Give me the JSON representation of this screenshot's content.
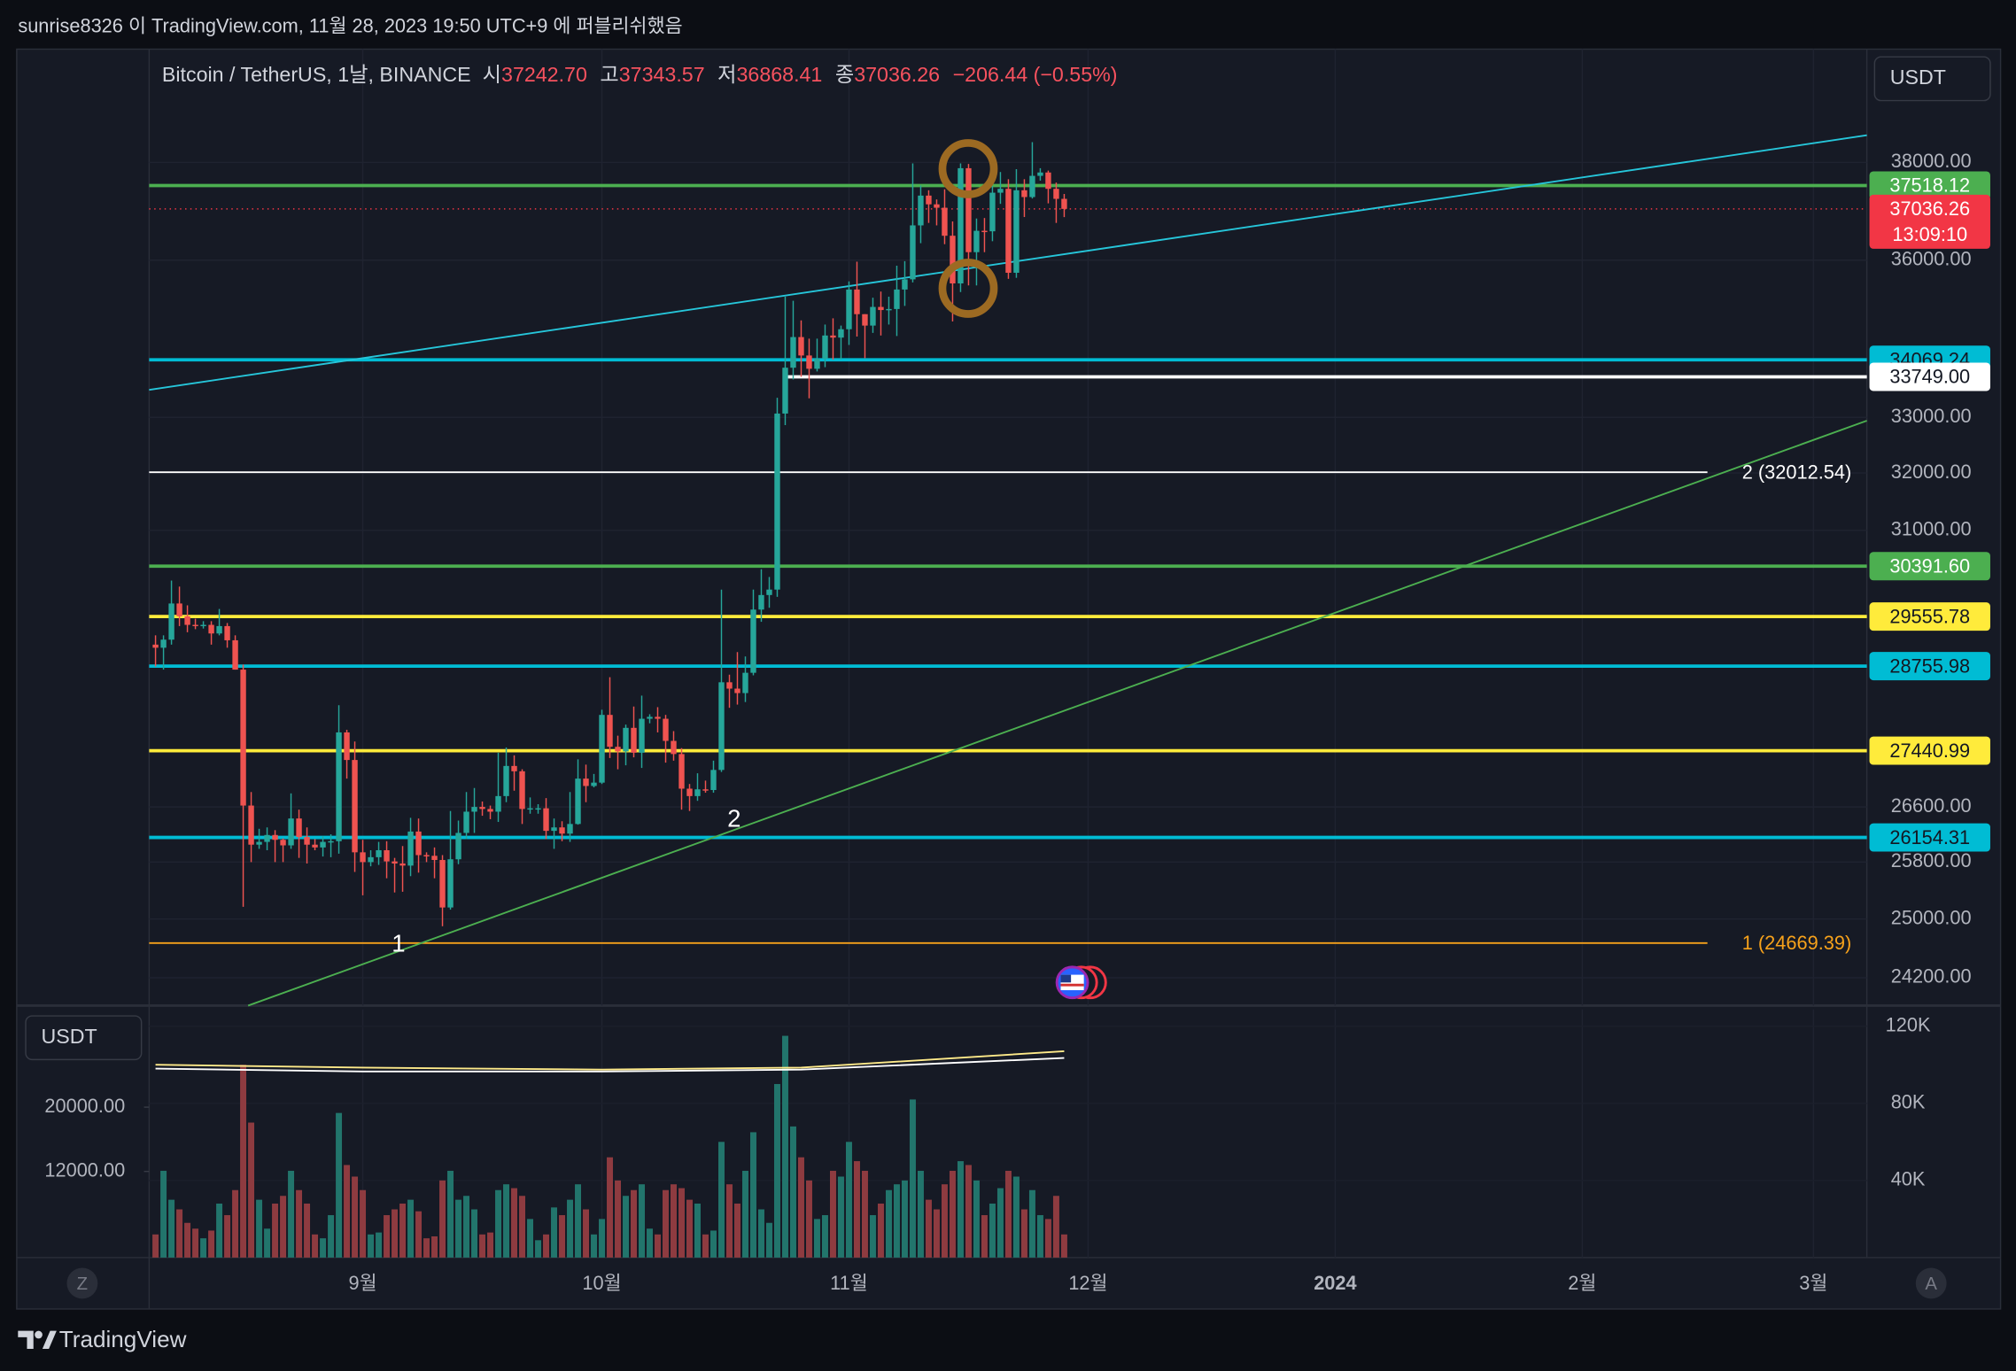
{
  "header": {
    "publisher": "sunrise8326 이 TradingView.com, 11월 28, 2023 19:50 UTC+9 에 퍼블리쉬했음",
    "symbol": "Bitcoin / TetherUS, 1날, BINANCE",
    "ohlc": [
      {
        "key": "시",
        "value": "37242.70"
      },
      {
        "key": "고",
        "value": "37343.57"
      },
      {
        "key": "저",
        "value": "36868.41"
      },
      {
        "key": "종",
        "value": "37036.26"
      }
    ],
    "change": "−206.44 (−0.55%)",
    "currency": "USDT",
    "volume_currency": "USDT",
    "brand": "TradingView",
    "left_button": "Z",
    "right_button": "A"
  },
  "chart_data": [
    {
      "type": "candlestick",
      "log_scale": true,
      "grid": true,
      "up_color": "#26a69a",
      "down_color": "#ef5350",
      "x": [
        -26,
        -25,
        -24,
        -23,
        -22,
        -21,
        -20,
        -19,
        -18,
        -17,
        -16,
        -15,
        -14,
        -13,
        -12,
        -11,
        -10,
        -9,
        -8,
        -7,
        -6,
        -5,
        -4,
        -3,
        -2,
        -1,
        0,
        1,
        2,
        3,
        4,
        5,
        6,
        7,
        8,
        9,
        10,
        11,
        12,
        13,
        14,
        15,
        16,
        17,
        18,
        19,
        20,
        21,
        22,
        23,
        24,
        25,
        26,
        27,
        28,
        29,
        30,
        31,
        32,
        33,
        34,
        35,
        36,
        37,
        38,
        39,
        40,
        41,
        42,
        43,
        44,
        45,
        46,
        47,
        48,
        49,
        50,
        51,
        52,
        53,
        54,
        55,
        56,
        57,
        58,
        59,
        60,
        61,
        62,
        63,
        64,
        65,
        66,
        67,
        68,
        69,
        70,
        71,
        72,
        73,
        74,
        75,
        76,
        77,
        78,
        79,
        80,
        81,
        82,
        83,
        84,
        85,
        86,
        87,
        88
      ],
      "open": [
        29100,
        29050,
        29180,
        29770,
        29560,
        29420,
        29400,
        29420,
        29280,
        29400,
        29170,
        28700,
        26620,
        26050,
        26090,
        26190,
        26120,
        26040,
        26430,
        26160,
        26050,
        26010,
        26090,
        26100,
        27720,
        27300,
        25940,
        25800,
        25870,
        25970,
        25810,
        25780,
        25750,
        26240,
        25900,
        25890,
        25830,
        25160,
        25840,
        26220,
        26530,
        26600,
        26570,
        26530,
        26760,
        27210,
        27130,
        26570,
        26580,
        26580,
        26250,
        26300,
        26210,
        26350,
        27020,
        26910,
        26960,
        27990,
        27500,
        27430,
        27790,
        27410,
        27930,
        27960,
        27930,
        27590,
        27390,
        26870,
        26760,
        26860,
        26850,
        27150,
        28500,
        28400,
        28330,
        28650,
        29670,
        29910,
        30000,
        33070,
        33920,
        34500,
        34150,
        33900,
        34090,
        34530,
        34490,
        34650,
        35420,
        34940,
        34720,
        35080,
        35020,
        35040,
        35420,
        35620,
        36700,
        37310,
        37130,
        37060,
        36490,
        35540,
        37880,
        36160,
        36590,
        36580,
        37370,
        37450,
        35750,
        37420,
        37280,
        37720,
        37790,
        37450,
        37242.7
      ],
      "high": [
        29250,
        29250,
        30150,
        30050,
        29740,
        29520,
        29480,
        29480,
        29680,
        29450,
        29250,
        28780,
        26820,
        26280,
        26300,
        26260,
        26140,
        26800,
        26560,
        26300,
        26130,
        26170,
        26200,
        28140,
        27760,
        27580,
        26120,
        25970,
        26090,
        26100,
        25860,
        26030,
        26440,
        26430,
        25940,
        26010,
        25900,
        26540,
        26400,
        26820,
        26880,
        26680,
        26620,
        27410,
        27490,
        27370,
        27160,
        26740,
        26640,
        26730,
        26430,
        26390,
        26820,
        27310,
        27230,
        27090,
        28070,
        28580,
        27670,
        27840,
        28120,
        28290,
        28000,
        28110,
        27990,
        27740,
        27480,
        26940,
        27100,
        26990,
        27290,
        30000,
        28620,
        28980,
        28910,
        30000,
        30340,
        30210,
        33360,
        35280,
        35200,
        34820,
        34470,
        34470,
        34740,
        34860,
        34720,
        35580,
        35970,
        34940,
        35260,
        35380,
        35280,
        35890,
        35980,
        37980,
        37520,
        37420,
        37230,
        37440,
        36780,
        37980,
        37970,
        36840,
        36850,
        37510,
        37800,
        37650,
        37860,
        37650,
        38430,
        37880,
        37830,
        37580,
        37343.57
      ],
      "low": [
        28750,
        28700,
        29100,
        29400,
        29300,
        29350,
        29360,
        29100,
        29250,
        29050,
        28700,
        25170,
        25800,
        25990,
        25970,
        25800,
        25800,
        25990,
        25860,
        25780,
        25970,
        25880,
        25870,
        25920,
        27020,
        25660,
        25330,
        25740,
        25760,
        25570,
        25370,
        25380,
        25600,
        25650,
        25800,
        25570,
        24900,
        25130,
        25770,
        26130,
        26220,
        26470,
        26420,
        26380,
        26670,
        26840,
        26350,
        26500,
        26500,
        26130,
        25990,
        26100,
        26090,
        26340,
        26670,
        26890,
        26940,
        27330,
        27160,
        27220,
        27340,
        27180,
        27860,
        27720,
        27260,
        27290,
        26560,
        26540,
        26690,
        26810,
        26810,
        27120,
        28100,
        28150,
        28190,
        28610,
        29470,
        29700,
        29880,
        32860,
        33700,
        33750,
        33350,
        33850,
        33930,
        34070,
        34080,
        34350,
        34510,
        34100,
        34580,
        34530,
        34740,
        34520,
        35100,
        35560,
        36340,
        36750,
        36700,
        36320,
        34800,
        35370,
        35500,
        35500,
        36160,
        36380,
        37140,
        35630,
        35650,
        36870,
        37250,
        37620,
        37150,
        36750,
        36868.41
      ],
      "close": [
        29050,
        29180,
        29770,
        29560,
        29420,
        29400,
        29420,
        29280,
        29400,
        29170,
        28700,
        26620,
        26050,
        26090,
        26190,
        26120,
        26040,
        26430,
        26160,
        26050,
        26010,
        26090,
        26100,
        27720,
        27300,
        25940,
        25800,
        25870,
        25970,
        25810,
        25780,
        25750,
        26240,
        25900,
        25890,
        25830,
        25160,
        25840,
        26220,
        26530,
        26600,
        26570,
        26530,
        26760,
        27210,
        27130,
        26570,
        26580,
        26580,
        26250,
        26300,
        26210,
        26350,
        27020,
        26910,
        26960,
        27990,
        27500,
        27430,
        27790,
        27410,
        27930,
        27960,
        27930,
        27590,
        27390,
        26870,
        26760,
        26860,
        26850,
        27150,
        28500,
        28400,
        28330,
        28650,
        29670,
        29910,
        30000,
        33070,
        33920,
        34500,
        34150,
        33900,
        34090,
        34530,
        34490,
        34650,
        35420,
        34940,
        34720,
        35080,
        35020,
        35040,
        35420,
        35620,
        36700,
        37310,
        37130,
        37060,
        36490,
        35540,
        37880,
        36160,
        36590,
        36580,
        37370,
        37450,
        35750,
        37420,
        37280,
        37720,
        37790,
        37450,
        37242.7,
        37036.26
      ],
      "xlim": [
        -26.8,
        188.7
      ],
      "xticks": [
        {
          "value": 0,
          "label": "9월"
        },
        {
          "value": 30,
          "label": "10월"
        },
        {
          "value": 61,
          "label": "11월"
        },
        {
          "value": 91,
          "label": "12월"
        },
        {
          "value": 122,
          "label": "2024"
        },
        {
          "value": 153,
          "label": "2월"
        },
        {
          "value": 182,
          "label": "3월"
        }
      ],
      "ylim": [
        23830,
        40460
      ],
      "yticks": [
        {
          "value": 38000,
          "label": "38000.00"
        },
        {
          "value": 36000,
          "label": "36000.00"
        },
        {
          "value": 33000,
          "label": "33000.00"
        },
        {
          "value": 32000,
          "label": "32000.00"
        },
        {
          "value": 31000,
          "label": "31000.00"
        },
        {
          "value": 26600,
          "label": "26600.00"
        },
        {
          "value": 25800,
          "label": "25800.00"
        },
        {
          "value": 25000,
          "label": "25000.00"
        },
        {
          "value": 24200,
          "label": "24200.00"
        }
      ],
      "levels": [
        {
          "value": 37518.12,
          "label": "37518.12",
          "color": "#4caf50",
          "text_color": "#ffffff",
          "tag": true
        },
        {
          "value": 34069.24,
          "label": "34069.24",
          "color": "#00bcd4",
          "text_color": "#131722",
          "tag": true
        },
        {
          "value": 33749,
          "label": "33749.00",
          "color": "#ffffff",
          "text_color": "#131722",
          "tag": true,
          "x_start": 53
        },
        {
          "value": 32012.54,
          "label": "2 (32012.54)",
          "color": "#ffffff",
          "text_color": "#ffffff",
          "tag": false
        },
        {
          "value": 30391.6,
          "label": "30391.60",
          "color": "#4caf50",
          "text_color": "#ffffff",
          "tag": true
        },
        {
          "value": 29555.78,
          "label": "29555.78",
          "color": "#ffeb3b",
          "text_color": "#131722",
          "tag": true
        },
        {
          "value": 28755.98,
          "label": "28755.98",
          "color": "#00bcd4",
          "text_color": "#131722",
          "tag": true
        },
        {
          "value": 27440.99,
          "label": "27440.99",
          "color": "#ffeb3b",
          "text_color": "#131722",
          "tag": true
        },
        {
          "value": 26154.31,
          "label": "26154.31",
          "color": "#00bcd4",
          "text_color": "#131722",
          "tag": true
        },
        {
          "value": 24669.39,
          "label": "1 (24669.39)",
          "color": "#f7a21b",
          "text_color": "#f7a21b",
          "tag": false
        }
      ],
      "last_price": {
        "value": 37036.26,
        "label": "37036.26",
        "countdown": "13:09:10",
        "color": "#f23645"
      },
      "annotations": [
        "1",
        "2"
      ]
    },
    {
      "type": "bar",
      "up_color": "#22756c",
      "down_color": "#8e3b40",
      "values": [
        12000,
        45000,
        30000,
        25000,
        18000,
        15000,
        10000,
        14000,
        28000,
        22000,
        35000,
        100000,
        70000,
        30000,
        15000,
        28000,
        32000,
        45000,
        35000,
        28000,
        12000,
        10000,
        22000,
        75000,
        48000,
        42000,
        35000,
        12000,
        13000,
        22000,
        25000,
        28000,
        30000,
        24000,
        10000,
        11000,
        40000,
        45000,
        30000,
        32000,
        25000,
        12000,
        13000,
        35000,
        38000,
        36000,
        32000,
        20000,
        9000,
        12000,
        26000,
        22000,
        30000,
        38000,
        25000,
        12000,
        20000,
        52000,
        40000,
        32000,
        35000,
        38000,
        15000,
        12000,
        35000,
        38000,
        36000,
        30000,
        28000,
        12000,
        14000,
        60000,
        38000,
        28000,
        45000,
        65000,
        25000,
        18000,
        90000,
        115000,
        68000,
        52000,
        40000,
        20000,
        22000,
        45000,
        42000,
        60000,
        50000,
        45000,
        22000,
        28000,
        35000,
        38000,
        40000,
        82000,
        45000,
        30000,
        25000,
        38000,
        45000,
        50000,
        48000,
        40000,
        22000,
        28000,
        36000,
        45000,
        42000,
        25000,
        35000,
        22000,
        20000,
        32000,
        12000
      ],
      "ylim": [
        0,
        128670
      ],
      "yticks": [
        {
          "value": 120000,
          "label": "120K"
        },
        {
          "value": 80000,
          "label": "80K"
        },
        {
          "value": 40000,
          "label": "40K"
        }
      ],
      "y2lim": [
        1280,
        32160
      ],
      "y2ticks": [
        {
          "value": 20000,
          "label": "20000.00"
        },
        {
          "value": 12000,
          "label": "12000.00"
        }
      ],
      "series": [
        {
          "color": "#ffeb8a",
          "x": [
            -26,
            0,
            30,
            55,
            88
          ],
          "values": [
            100000,
            98500,
            97500,
            98500,
            107000
          ]
        },
        {
          "color": "#ffffff",
          "x": [
            -26,
            0,
            30,
            55,
            88
          ],
          "values": [
            98000,
            96500,
            96500,
            97500,
            103500
          ]
        }
      ]
    }
  ]
}
